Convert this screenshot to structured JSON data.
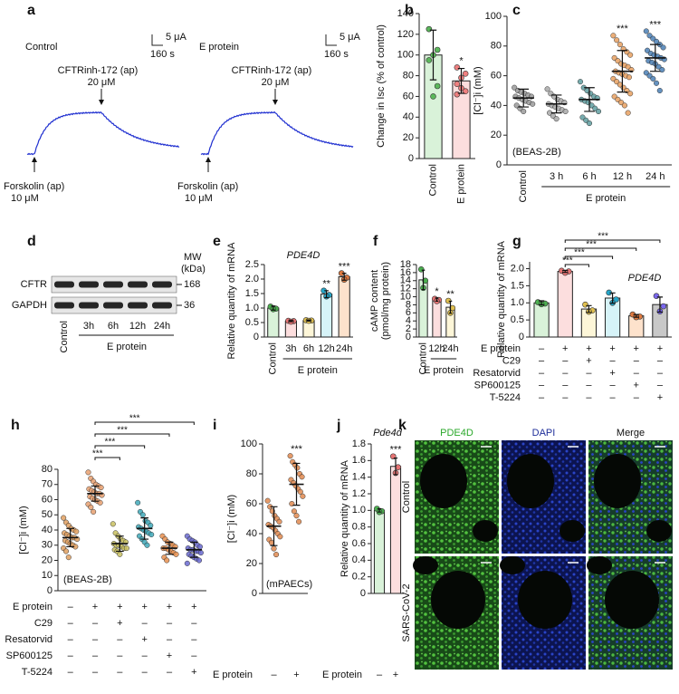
{
  "figure": {
    "panel_a": {
      "label": "a",
      "conditions": [
        "Control",
        "E protein"
      ],
      "current_scale": "5 μA",
      "time_scale": "160 s",
      "inhibitor": "CFTRinh-172 (ap)",
      "inhibitor_dose": "20 μM",
      "activator": "Forskolin (ap)",
      "activator_dose": "10 μM"
    },
    "panel_d": {
      "label": "d",
      "mw_label": [
        "MW",
        "(kDa)"
      ],
      "bands": [
        {
          "name": "CFTR",
          "mw": 168
        },
        {
          "name": "GAPDH",
          "mw": 36
        }
      ],
      "lanes": [
        "Control",
        "3h",
        "6h",
        "12h",
        "24h"
      ],
      "group": "E protein"
    },
    "panel_k": {
      "label": "k",
      "channels": [
        "PDE4D",
        "DAPI",
        "Merge"
      ],
      "conditions": [
        "Control",
        "SARS-CoV-2"
      ]
    }
  },
  "chart_data": [
    {
      "type": "bar",
      "panel": "b",
      "ylabel": "Change in Isc (% of control)",
      "categories": [
        "Control",
        "E protein"
      ],
      "values": [
        100,
        75
      ],
      "errors": [
        24,
        12
      ],
      "points": [
        [
          125,
          105,
          100,
          95,
          70,
          60
        ],
        [
          88,
          82,
          78,
          72,
          65,
          68,
          62
        ]
      ],
      "colors": [
        "#d9f2d9",
        "#fcdede"
      ],
      "point_colors": [
        "#5cb85c",
        "#ef8080"
      ],
      "ylim": [
        0,
        140
      ],
      "yticks": [
        0,
        20,
        40,
        60,
        80,
        100,
        120,
        140
      ],
      "stars": [
        {
          "index": 1,
          "label": "*"
        }
      ]
    },
    {
      "type": "dot",
      "panel": "c",
      "ylabel": "[Cl⁻]i (mM)",
      "categories": [
        "Control",
        "3 h",
        "6 h",
        "12 h",
        "24 h"
      ],
      "group": {
        "label": "E protein",
        "from": 1,
        "to": 4
      },
      "values": [
        45,
        41,
        44,
        63,
        72
      ],
      "errors": [
        6,
        6,
        8,
        14,
        9
      ],
      "points": [
        [
          52,
          50,
          49,
          48,
          47,
          46,
          46,
          45,
          44,
          43,
          42,
          41,
          40,
          38,
          36
        ],
        [
          51,
          48,
          46,
          44,
          43,
          42,
          41,
          40,
          39,
          38,
          37,
          36,
          35,
          33,
          31
        ],
        [
          56,
          52,
          50,
          48,
          46,
          45,
          44,
          43,
          42,
          40,
          38,
          36,
          32,
          30,
          28
        ],
        [
          87,
          84,
          81,
          78,
          76,
          74,
          72,
          70,
          68,
          67,
          66,
          64,
          63,
          62,
          61,
          60,
          59,
          58,
          56,
          54,
          52,
          50,
          48,
          46,
          44,
          42,
          40,
          35
        ],
        [
          90,
          87,
          85,
          83,
          81,
          79,
          77,
          75,
          74,
          73,
          72,
          71,
          70,
          69,
          68,
          66,
          64,
          62,
          60,
          58,
          55,
          50
        ]
      ],
      "point_colors": [
        "#9a9a9a",
        "#a8a8a8",
        "#5f9ea0",
        "#e8a060",
        "#4a7fb5"
      ],
      "ylim": [
        0,
        100
      ],
      "yticks": [
        0,
        20,
        40,
        60,
        80,
        100
      ],
      "stars": [
        {
          "index": 3,
          "label": "***"
        },
        {
          "index": 4,
          "label": "***"
        }
      ],
      "note": "(BEAS-2B)"
    },
    {
      "type": "bar",
      "panel": "e",
      "title": "PDE4D",
      "ylabel": "Relative quantity of mRNA",
      "categories": [
        "Control",
        "3h",
        "6h",
        "12h",
        "24h"
      ],
      "group": {
        "label": "E protein",
        "from": 1,
        "to": 4
      },
      "values": [
        1,
        0.55,
        0.57,
        1.48,
        2.08
      ],
      "errors": [
        0.07,
        0.02,
        0.02,
        0.12,
        0.12
      ],
      "points": [
        [
          1.05,
          0.98,
          0.96
        ],
        [
          0.56,
          0.55,
          0.53
        ],
        [
          0.58,
          0.57,
          0.56
        ],
        [
          1.6,
          1.45,
          1.4
        ],
        [
          2.2,
          2.05,
          1.98
        ]
      ],
      "colors": [
        "#d9f2d9",
        "#fcdede",
        "#fdf6d8",
        "#d6f3f8",
        "#fde2cc"
      ],
      "point_colors": [
        "#4caf50",
        "#e57373",
        "#e0c050",
        "#26a6c9",
        "#e07a40"
      ],
      "ylim": [
        0,
        2.5
      ],
      "yticks": [
        0,
        0.5,
        {
          "value": 1,
          "label": "1.0"
        },
        1.5,
        {
          "value": 2,
          "label": "2.0"
        },
        2.5
      ],
      "stars": [
        {
          "index": 3,
          "label": "**"
        },
        {
          "index": 4,
          "label": "***"
        }
      ]
    },
    {
      "type": "bar",
      "panel": "f",
      "ylabel": [
        "cAMP content",
        "(pmol/mg protein)"
      ],
      "categories": [
        "Control",
        "12h",
        "24h"
      ],
      "group": {
        "label": "E protein",
        "from": 1,
        "to": 2
      },
      "values": [
        14.2,
        9.3,
        7.4
      ],
      "errors": [
        2.4,
        0.4,
        1.5
      ],
      "points": [
        [
          16.8,
          14,
          12.2
        ],
        [
          9.5,
          9.2,
          8.9
        ],
        [
          9,
          7.2,
          6
        ]
      ],
      "colors": [
        "#d9f2d9",
        "#fcdede",
        "#fdf6d8"
      ],
      "point_colors": [
        "#4caf50",
        "#e57373",
        "#e0c050"
      ],
      "ylim": [
        0,
        18
      ],
      "yticks": [
        0,
        2,
        4,
        6,
        8,
        10,
        12,
        14,
        16,
        18
      ],
      "stars": [
        {
          "index": 1,
          "label": "*"
        },
        {
          "index": 2,
          "label": "**"
        }
      ]
    },
    {
      "type": "bar",
      "panel": "g",
      "title": "PDE4D",
      "ylabel": "Relative quantity of mRNA",
      "values": [
        1,
        1.92,
        0.82,
        1.14,
        0.62,
        0.95
      ],
      "errors": [
        0.06,
        0.03,
        0.1,
        0.15,
        0.04,
        0.22
      ],
      "points": [
        [
          1.02,
          0.98,
          0.96
        ],
        [
          1.94,
          1.92,
          1.88
        ],
        [
          0.95,
          0.78,
          0.74
        ],
        [
          1.3,
          1.1,
          1.0
        ],
        [
          0.66,
          0.6,
          0.58
        ],
        [
          1.2,
          0.9,
          0.75
        ]
      ],
      "colors": [
        "#d9f2d9",
        "#fcdede",
        "#fdf6d8",
        "#d6f3f8",
        "#fde2cc",
        "#c8c8c8"
      ],
      "point_colors": [
        "#4caf50",
        "#e57373",
        "#e0c050",
        "#26a6c9",
        "#e07a40",
        "#7b68ee"
      ],
      "ylim": [
        0,
        2.2
      ],
      "yticks": [
        0,
        0.5,
        {
          "value": 1,
          "label": "1.0"
        },
        1.5,
        {
          "value": 2,
          "label": "2.0"
        }
      ],
      "brackets": [
        {
          "from": 1,
          "to": 2,
          "label": "***"
        },
        {
          "from": 1,
          "to": 3,
          "label": "***"
        },
        {
          "from": 1,
          "to": 4,
          "label": "***"
        },
        {
          "from": 1,
          "to": 5,
          "label": "***"
        }
      ],
      "conditions": [
        {
          "name": "E protein",
          "marks": [
            "–",
            "+",
            "+",
            "+",
            "+",
            "+"
          ]
        },
        {
          "name": "C29",
          "marks": [
            "–",
            "–",
            "+",
            "–",
            "–",
            "–"
          ]
        },
        {
          "name": "Resatorvid",
          "marks": [
            "–",
            "–",
            "–",
            "+",
            "–",
            "–"
          ]
        },
        {
          "name": "SP600125",
          "marks": [
            "–",
            "–",
            "–",
            "–",
            "+",
            "–"
          ]
        },
        {
          "name": "T-5224",
          "marks": [
            "–",
            "–",
            "–",
            "–",
            "–",
            "+"
          ]
        }
      ]
    },
    {
      "type": "dot",
      "panel": "h",
      "ylabel": "[Cl⁻]i (mM)",
      "values": [
        35,
        64,
        31,
        41,
        28,
        27
      ],
      "errors": [
        6,
        5,
        5,
        7,
        4,
        5
      ],
      "points": [
        [
          48,
          45,
          43,
          41,
          40,
          39,
          38,
          37,
          36,
          35,
          35,
          34,
          33,
          32,
          31,
          30,
          29,
          28,
          26,
          22
        ],
        [
          78,
          74,
          72,
          70,
          69,
          68,
          67,
          66,
          65,
          64,
          64,
          63,
          62,
          61,
          60,
          59,
          58,
          57,
          55,
          52
        ],
        [
          44,
          38,
          36,
          34,
          33,
          32,
          31,
          30,
          30,
          29,
          28,
          28,
          27,
          26,
          24
        ],
        [
          58,
          52,
          50,
          46,
          45,
          43,
          42,
          41,
          40,
          39,
          38,
          37,
          36,
          34,
          32,
          30
        ],
        [
          36,
          34,
          32,
          31,
          30,
          29,
          28,
          28,
          27,
          26,
          25,
          24,
          22,
          20
        ],
        [
          36,
          34,
          33,
          32,
          30,
          29,
          28,
          27,
          27,
          26,
          26,
          25,
          24,
          23,
          22,
          21,
          20,
          18
        ]
      ],
      "point_colors": [
        "#e0a060",
        "#e8a070",
        "#c8c060",
        "#40a8b8",
        "#e89050",
        "#6a6ad0"
      ],
      "ylim": [
        0,
        80
      ],
      "yticks": [
        0,
        10,
        20,
        30,
        40,
        50,
        60,
        70,
        80
      ],
      "brackets": [
        {
          "from": 1,
          "to": 2,
          "label": "***"
        },
        {
          "from": 1,
          "to": 3,
          "label": "***"
        },
        {
          "from": 1,
          "to": 4,
          "label": "***"
        },
        {
          "from": 1,
          "to": 5,
          "label": "***"
        }
      ],
      "conditions": [
        {
          "name": "E protein",
          "marks": [
            "–",
            "+",
            "+",
            "+",
            "+",
            "+"
          ]
        },
        {
          "name": "C29",
          "marks": [
            "–",
            "–",
            "+",
            "–",
            "–",
            "–"
          ]
        },
        {
          "name": "Resatorvid",
          "marks": [
            "–",
            "–",
            "–",
            "+",
            "–",
            "–"
          ]
        },
        {
          "name": "SP600125",
          "marks": [
            "–",
            "–",
            "–",
            "–",
            "+",
            "–"
          ]
        },
        {
          "name": "T-5224",
          "marks": [
            "–",
            "–",
            "–",
            "–",
            "–",
            "+"
          ]
        }
      ],
      "note": "(BEAS-2B)"
    },
    {
      "type": "dot",
      "panel": "i",
      "ylabel": "[Cl⁻]i (mM)",
      "values": [
        45,
        73
      ],
      "errors": [
        13,
        14
      ],
      "points": [
        [
          62,
          58,
          55,
          52,
          50,
          48,
          46,
          45,
          44,
          42,
          40,
          38,
          36,
          34,
          30,
          26
        ],
        [
          92,
          88,
          86,
          84,
          80,
          78,
          76,
          74,
          72,
          70,
          68,
          65,
          60,
          55,
          52,
          48
        ]
      ],
      "point_colors": [
        "#e08a50",
        "#e08a50"
      ],
      "ylim": [
        0,
        100
      ],
      "yticks": [
        0,
        20,
        40,
        60,
        80,
        100
      ],
      "stars": [
        {
          "index": 1,
          "label": "***"
        }
      ],
      "note": "(mPAECs)",
      "conditions": [
        {
          "name": "E protein",
          "marks": [
            "–",
            "+"
          ]
        }
      ]
    },
    {
      "type": "bar",
      "panel": "j",
      "title": "Pde4d",
      "ylabel": "Relative quantity of mRNA",
      "values": [
        1,
        1.53
      ],
      "errors": [
        0.02,
        0.1
      ],
      "points": [
        [
          1.02,
          0.99,
          0.98
        ],
        [
          1.65,
          1.52,
          1.45
        ]
      ],
      "colors": [
        "#d9f2d9",
        "#fcdede"
      ],
      "point_colors": [
        "#4caf50",
        "#e57373"
      ],
      "ylim": [
        0,
        1.8
      ],
      "yticks": [
        0,
        0.2,
        0.4,
        0.6,
        0.8,
        {
          "value": 1,
          "label": "1.0"
        },
        1.2,
        1.4,
        1.6,
        1.8
      ],
      "stars": [
        {
          "index": 1,
          "label": "***"
        }
      ],
      "conditions": [
        {
          "name": "E protein",
          "marks": [
            "–",
            "+"
          ]
        }
      ]
    }
  ]
}
